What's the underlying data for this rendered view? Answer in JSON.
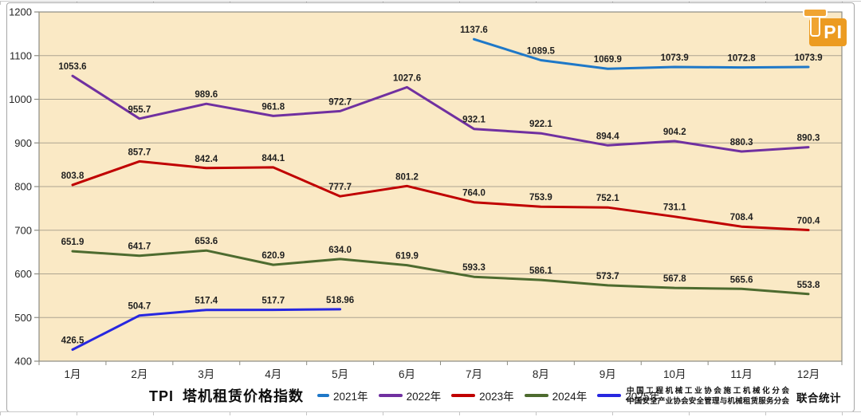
{
  "logo": {
    "letters": "PI"
  },
  "footer": {
    "org_line1": "中国工程机械工业协会施工机械化分会",
    "org_line2": "中国安全产业协会安全管理与机械租赁服务分会",
    "joint_label": "联合统计"
  },
  "chart_data": {
    "type": "line",
    "title": "TPI 塔机租赁价格指数",
    "categories": [
      "1月",
      "2月",
      "3月",
      "4月",
      "5月",
      "6月",
      "7月",
      "8月",
      "9月",
      "10月",
      "11月",
      "12月"
    ],
    "ylim": [
      400,
      1200
    ],
    "ytick_step": 100,
    "grid": true,
    "legend_position": "bottom",
    "plot_bg": "#FAE9C5",
    "grid_color": "#ada491",
    "axis_color": "#8c8c84",
    "label_color": "#1f1f1f",
    "series": [
      {
        "name": "2021年",
        "color": "#1E78C8",
        "values": [
          null,
          null,
          null,
          null,
          null,
          null,
          1137.6,
          1089.5,
          1069.9,
          1073.9,
          1072.8,
          1073.9
        ],
        "labels": [
          null,
          null,
          null,
          null,
          null,
          null,
          "1137.6",
          "1089.5",
          "1069.9",
          "1073.9",
          "1072.8",
          "1073.9"
        ]
      },
      {
        "name": "2022年",
        "color": "#7030A0",
        "values": [
          1053.6,
          955.7,
          989.6,
          961.8,
          972.7,
          1027.6,
          932.1,
          922.1,
          894.4,
          904.2,
          880.3,
          890.3
        ],
        "labels": [
          "1053.6",
          "955.7",
          "989.6",
          "961.8",
          "972.7",
          "1027.6",
          "932.1",
          "922.1",
          "894.4",
          "904.2",
          "880.3",
          "890.3"
        ]
      },
      {
        "name": "2023年",
        "color": "#C00000",
        "values": [
          803.8,
          857.7,
          842.4,
          844.1,
          777.7,
          801.2,
          764.0,
          753.9,
          752.1,
          731.1,
          708.4,
          700.4
        ],
        "labels": [
          "803.8",
          "857.7",
          "842.4",
          "844.1",
          "777.7",
          "801.2",
          "764.0",
          "753.9",
          "752.1",
          "731.1",
          "708.4",
          "700.4"
        ]
      },
      {
        "name": "2024年",
        "color": "#4D6B2F",
        "values": [
          651.9,
          641.7,
          653.6,
          620.9,
          634.0,
          619.9,
          593.3,
          586.1,
          573.7,
          567.8,
          565.6,
          553.8
        ],
        "labels": [
          "651.9",
          "641.7",
          "653.6",
          "620.9",
          "634.0",
          "619.9",
          "593.3",
          "586.1",
          "573.7",
          "567.8",
          "565.6",
          "553.8"
        ]
      },
      {
        "name": "2025年",
        "color": "#2727E0",
        "values": [
          426.5,
          504.7,
          517.4,
          517.7,
          518.96,
          null,
          null,
          null,
          null,
          null,
          null,
          null
        ],
        "labels": [
          "426.5",
          "504.7",
          "517.4",
          "517.7",
          "518.96",
          null,
          null,
          null,
          null,
          null,
          null,
          null
        ]
      }
    ]
  }
}
